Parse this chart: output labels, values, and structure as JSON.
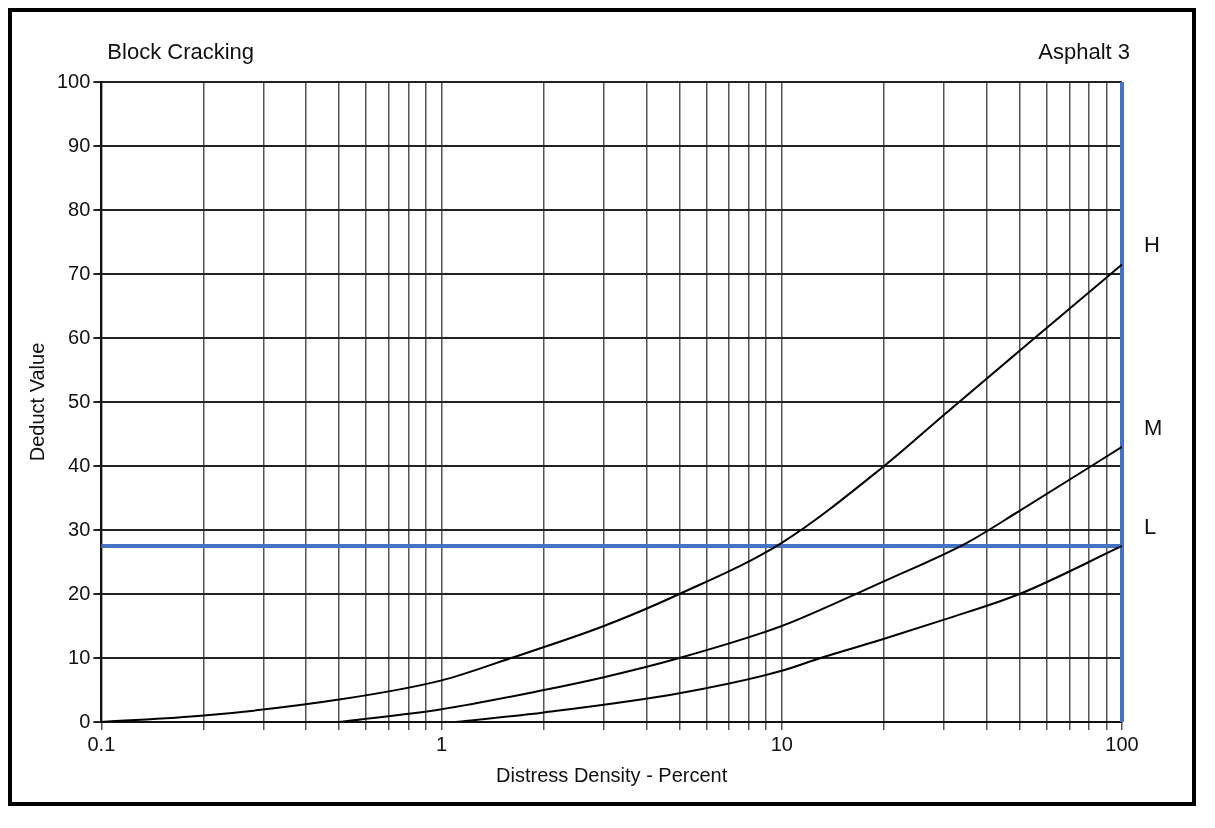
{
  "chart_data": {
    "type": "line",
    "title": "Block Cracking",
    "subtitle": "Asphalt 3",
    "xlabel": "Distress Density - Percent",
    "ylabel": "Deduct Value",
    "log": "x",
    "xlim": [
      0.1,
      100
    ],
    "ylim": [
      0,
      100
    ],
    "xticks": [
      0.1,
      {
        "value": 0.2,
        "label": null
      },
      {
        "value": 0.3,
        "label": null
      },
      {
        "value": 0.4,
        "label": null
      },
      {
        "value": 0.5,
        "label": null
      },
      {
        "value": 0.6,
        "label": null
      },
      {
        "value": 0.7,
        "label": null
      },
      {
        "value": 0.8,
        "label": null
      },
      {
        "value": 0.9,
        "label": null
      },
      1,
      {
        "value": 2,
        "label": null
      },
      {
        "value": 3,
        "label": null
      },
      {
        "value": 4,
        "label": null
      },
      {
        "value": 5,
        "label": null
      },
      {
        "value": 6,
        "label": null
      },
      {
        "value": 7,
        "label": null
      },
      {
        "value": 8,
        "label": null
      },
      {
        "value": 9,
        "label": null
      },
      10,
      {
        "value": 20,
        "label": null
      },
      {
        "value": 30,
        "label": null
      },
      {
        "value": 40,
        "label": null
      },
      {
        "value": 50,
        "label": null
      },
      {
        "value": 60,
        "label": null
      },
      {
        "value": 70,
        "label": null
      },
      {
        "value": 80,
        "label": null
      },
      {
        "value": 90,
        "label": null
      },
      100
    ],
    "yticks": [
      0,
      10,
      20,
      30,
      40,
      50,
      60,
      70,
      80,
      90,
      100
    ],
    "grid": true,
    "legend": false,
    "marker": "none",
    "line_style": "solid",
    "series": [
      {
        "name": "H",
        "color": "#000000",
        "x": [
          0.1,
          0.2,
          0.5,
          1,
          1.6,
          3,
          5,
          10,
          20,
          30,
          50,
          100
        ],
        "values": [
          0,
          1,
          3.5,
          6.5,
          10,
          15,
          20,
          28,
          40,
          48,
          58,
          71.5
        ]
      },
      {
        "name": "M",
        "color": "#000000",
        "x": [
          0.5,
          1,
          2,
          3,
          5,
          10,
          15,
          20,
          35,
          50,
          100
        ],
        "values": [
          0,
          2,
          5,
          7,
          10,
          15,
          19,
          22,
          28,
          33,
          43
        ]
      },
      {
        "name": "L",
        "color": "#000000",
        "x": [
          1.1,
          2,
          5,
          10,
          13,
          20,
          30,
          50,
          100
        ],
        "values": [
          0,
          1.5,
          4.5,
          8,
          10,
          13,
          16,
          20,
          27.5
        ]
      }
    ],
    "ref_lines": [
      {
        "axis": "y",
        "value": 27.5,
        "color": "#4472c4"
      },
      {
        "axis": "x",
        "value": 100,
        "color": "#4472c4"
      }
    ]
  }
}
